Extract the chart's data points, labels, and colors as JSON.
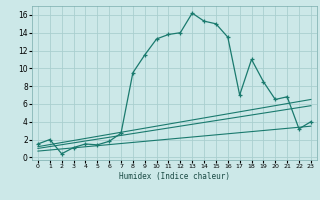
{
  "title": "",
  "xlabel": "Humidex (Indice chaleur)",
  "bg_color": "#cce8e8",
  "line_color": "#1a7a6e",
  "grid_color": "#aacfcf",
  "xlim": [
    -0.5,
    23.5
  ],
  "ylim": [
    -0.3,
    17.0
  ],
  "x_ticks": [
    0,
    1,
    2,
    3,
    4,
    5,
    6,
    7,
    8,
    9,
    10,
    11,
    12,
    13,
    14,
    15,
    16,
    17,
    18,
    19,
    20,
    21,
    22,
    23
  ],
  "y_ticks": [
    0,
    2,
    4,
    6,
    8,
    10,
    12,
    14,
    16
  ],
  "main_x": [
    0,
    1,
    2,
    3,
    4,
    5,
    6,
    7,
    8,
    9,
    10,
    11,
    12,
    13,
    14,
    15,
    16,
    17,
    18,
    19,
    20,
    21,
    22,
    23
  ],
  "main_y": [
    1.5,
    2.0,
    0.4,
    1.1,
    1.5,
    1.4,
    1.8,
    2.7,
    9.5,
    11.5,
    13.3,
    13.8,
    14.0,
    16.2,
    15.3,
    15.0,
    13.5,
    7.0,
    11.0,
    8.5,
    6.5,
    6.8,
    3.2,
    4.0
  ],
  "line2_x": [
    0,
    23
  ],
  "line2_y": [
    1.2,
    6.5
  ],
  "line3_x": [
    0,
    23
  ],
  "line3_y": [
    1.0,
    5.8
  ],
  "line4_x": [
    0,
    23
  ],
  "line4_y": [
    0.7,
    3.5
  ]
}
